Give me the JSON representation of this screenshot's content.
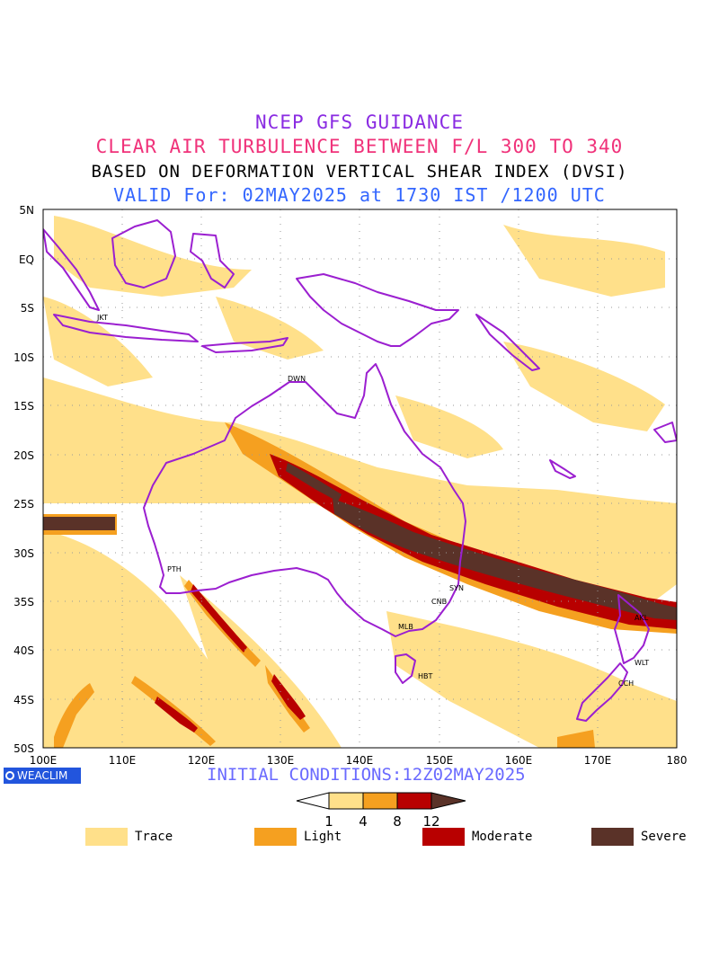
{
  "titles": {
    "line1": "NCEP GFS GUIDANCE",
    "line2": "CLEAR AIR TURBULENCE BETWEEN F/L 300 TO 340",
    "line3": "BASED ON DEFORMATION VERTICAL SHEAR INDEX (DVSI)",
    "line4": "VALID For: 02MAY2025 at 1730 IST /1200 UTC"
  },
  "colors": {
    "line1": "#8a2be2",
    "line2": "#f0327a",
    "line3": "#000000",
    "line4": "#3366ff",
    "coast": "#9b1fd0",
    "trace": "#ffe08a",
    "light": "#f5a020",
    "moderate": "#b80000",
    "severe": "#5a3228",
    "badge": "#2255dd",
    "init": "#6a6aff"
  },
  "axes": {
    "lat_labels": [
      "5N",
      "EQ",
      "5S",
      "10S",
      "15S",
      "20S",
      "25S",
      "30S",
      "35S",
      "40S",
      "45S",
      "50S"
    ],
    "lon_labels": [
      "100E",
      "110E",
      "120E",
      "130E",
      "140E",
      "150E",
      "160E",
      "170E",
      "180"
    ]
  },
  "stations": [
    "JKT",
    "DWN",
    "PTH",
    "SYN",
    "CNB",
    "MLB",
    "HBT",
    "AKL",
    "WLT",
    "CCH"
  ],
  "footer": {
    "initial_conditions": "INITIAL CONDITIONS:12Z02MAY2025",
    "badge": "WEACLIM"
  },
  "colorbar": {
    "ticks": [
      "1",
      "4",
      "8",
      "12"
    ]
  },
  "legend": [
    {
      "label": "Trace",
      "color": "#ffe08a"
    },
    {
      "label": "Light",
      "color": "#f5a020"
    },
    {
      "label": "Moderate",
      "color": "#b80000"
    },
    {
      "label": "Severe",
      "color": "#5a3228"
    }
  ]
}
